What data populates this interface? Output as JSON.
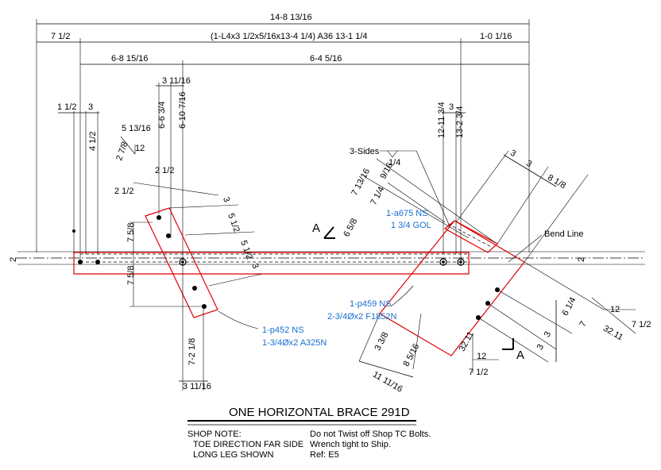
{
  "dimensions": {
    "overall": "14-8 13/16",
    "left_end": "7 1/2",
    "member": "(1-L4x3 1/2x5/16x13-4 1/4) A36 13-1 1/4",
    "right_end": "1-0 1/16",
    "left_wp": "6-8 15/16",
    "right_wp": "6-4 5/16",
    "d_3_11_16_top": "3 11/16",
    "d_6_6_3_4": "6-6 3/4",
    "d_6_10_7_16": "6-10 7/16",
    "d_1_1_2": "1 1/2",
    "d_3_left": "3",
    "d_4_1_2": "4 1/2",
    "d_5_13_16": "5 13/16",
    "bevel_left_a": "12",
    "bevel_left_b": "2 7/8",
    "d_2_1_2_a": "2 1/2",
    "d_2_1_2_b": "2 1/2",
    "d_3_plate_l": "3",
    "d_5_1_2_a": "5 1/2",
    "d_5_1_2_b": "5 1/2",
    "d_3_plate_l2": "3",
    "d_7_5_8_a": "7 5/8",
    "d_7_5_8_b": "7 5/8",
    "d_7_2_1_8": "7-2 1/8",
    "d_3_11_16_bot": "3 11/16",
    "d_3_right": "3",
    "d_12_11_3_4": "12-11 3/4",
    "d_13_2_3_4": "13-2 3/4",
    "weld_sides": "3-Sides",
    "weld_size": "1/4",
    "d_7_13_16": "7 13/16",
    "d_9_16": "9/16",
    "d_7_1_4": "7 1/4",
    "d_6_5_8": "6 5/8",
    "d_3_a": "3",
    "d_3_b": "3",
    "d_8_1_8": "8 1/8",
    "bend_line": "Bend Line",
    "d_6_1_4": "6 1/4",
    "d_7": "7",
    "d_3_c": "3",
    "d_3_d": "3",
    "bevel_right_a": "12",
    "bevel_right_b": "7 1/2",
    "bevel_right_c": "32.11",
    "bevel_bot_a": "12",
    "bevel_bot_b": "7 1/2",
    "bevel_bot_c": "32.11",
    "d_3_3_8": "3 3/8",
    "d_8_5_16": "8 5/16",
    "d_11_11_16": "11 11/16",
    "d_2_left": "2",
    "d_2_right": "2"
  },
  "callouts": {
    "p452_line1": "1-p452 NS",
    "p452_line2": "1-3/4Øx2 A325N",
    "a675_line1": "1-a675 NS",
    "a675_line2": "1 3/4 GOL",
    "p459_line1": "1-p459 NS",
    "p459_line2": "2-3/4Øx2 F1852N"
  },
  "section": {
    "label_a1": "A",
    "label_a2": "A"
  },
  "title": "ONE HORIZONTAL BRACE 291D",
  "notes": {
    "heading": "SHOP NOTE:",
    "line1": "TOE DIRECTION FAR SIDE",
    "line2": "LONG LEG SHOWN",
    "right1": "Do not Twist off Shop TC Bolts.",
    "right2": "Wrench tight to Ship.",
    "right3": "Ref: E5"
  },
  "colors": {
    "plate": "#e00000",
    "callout": "#1a6fd0",
    "line": "#000000"
  }
}
